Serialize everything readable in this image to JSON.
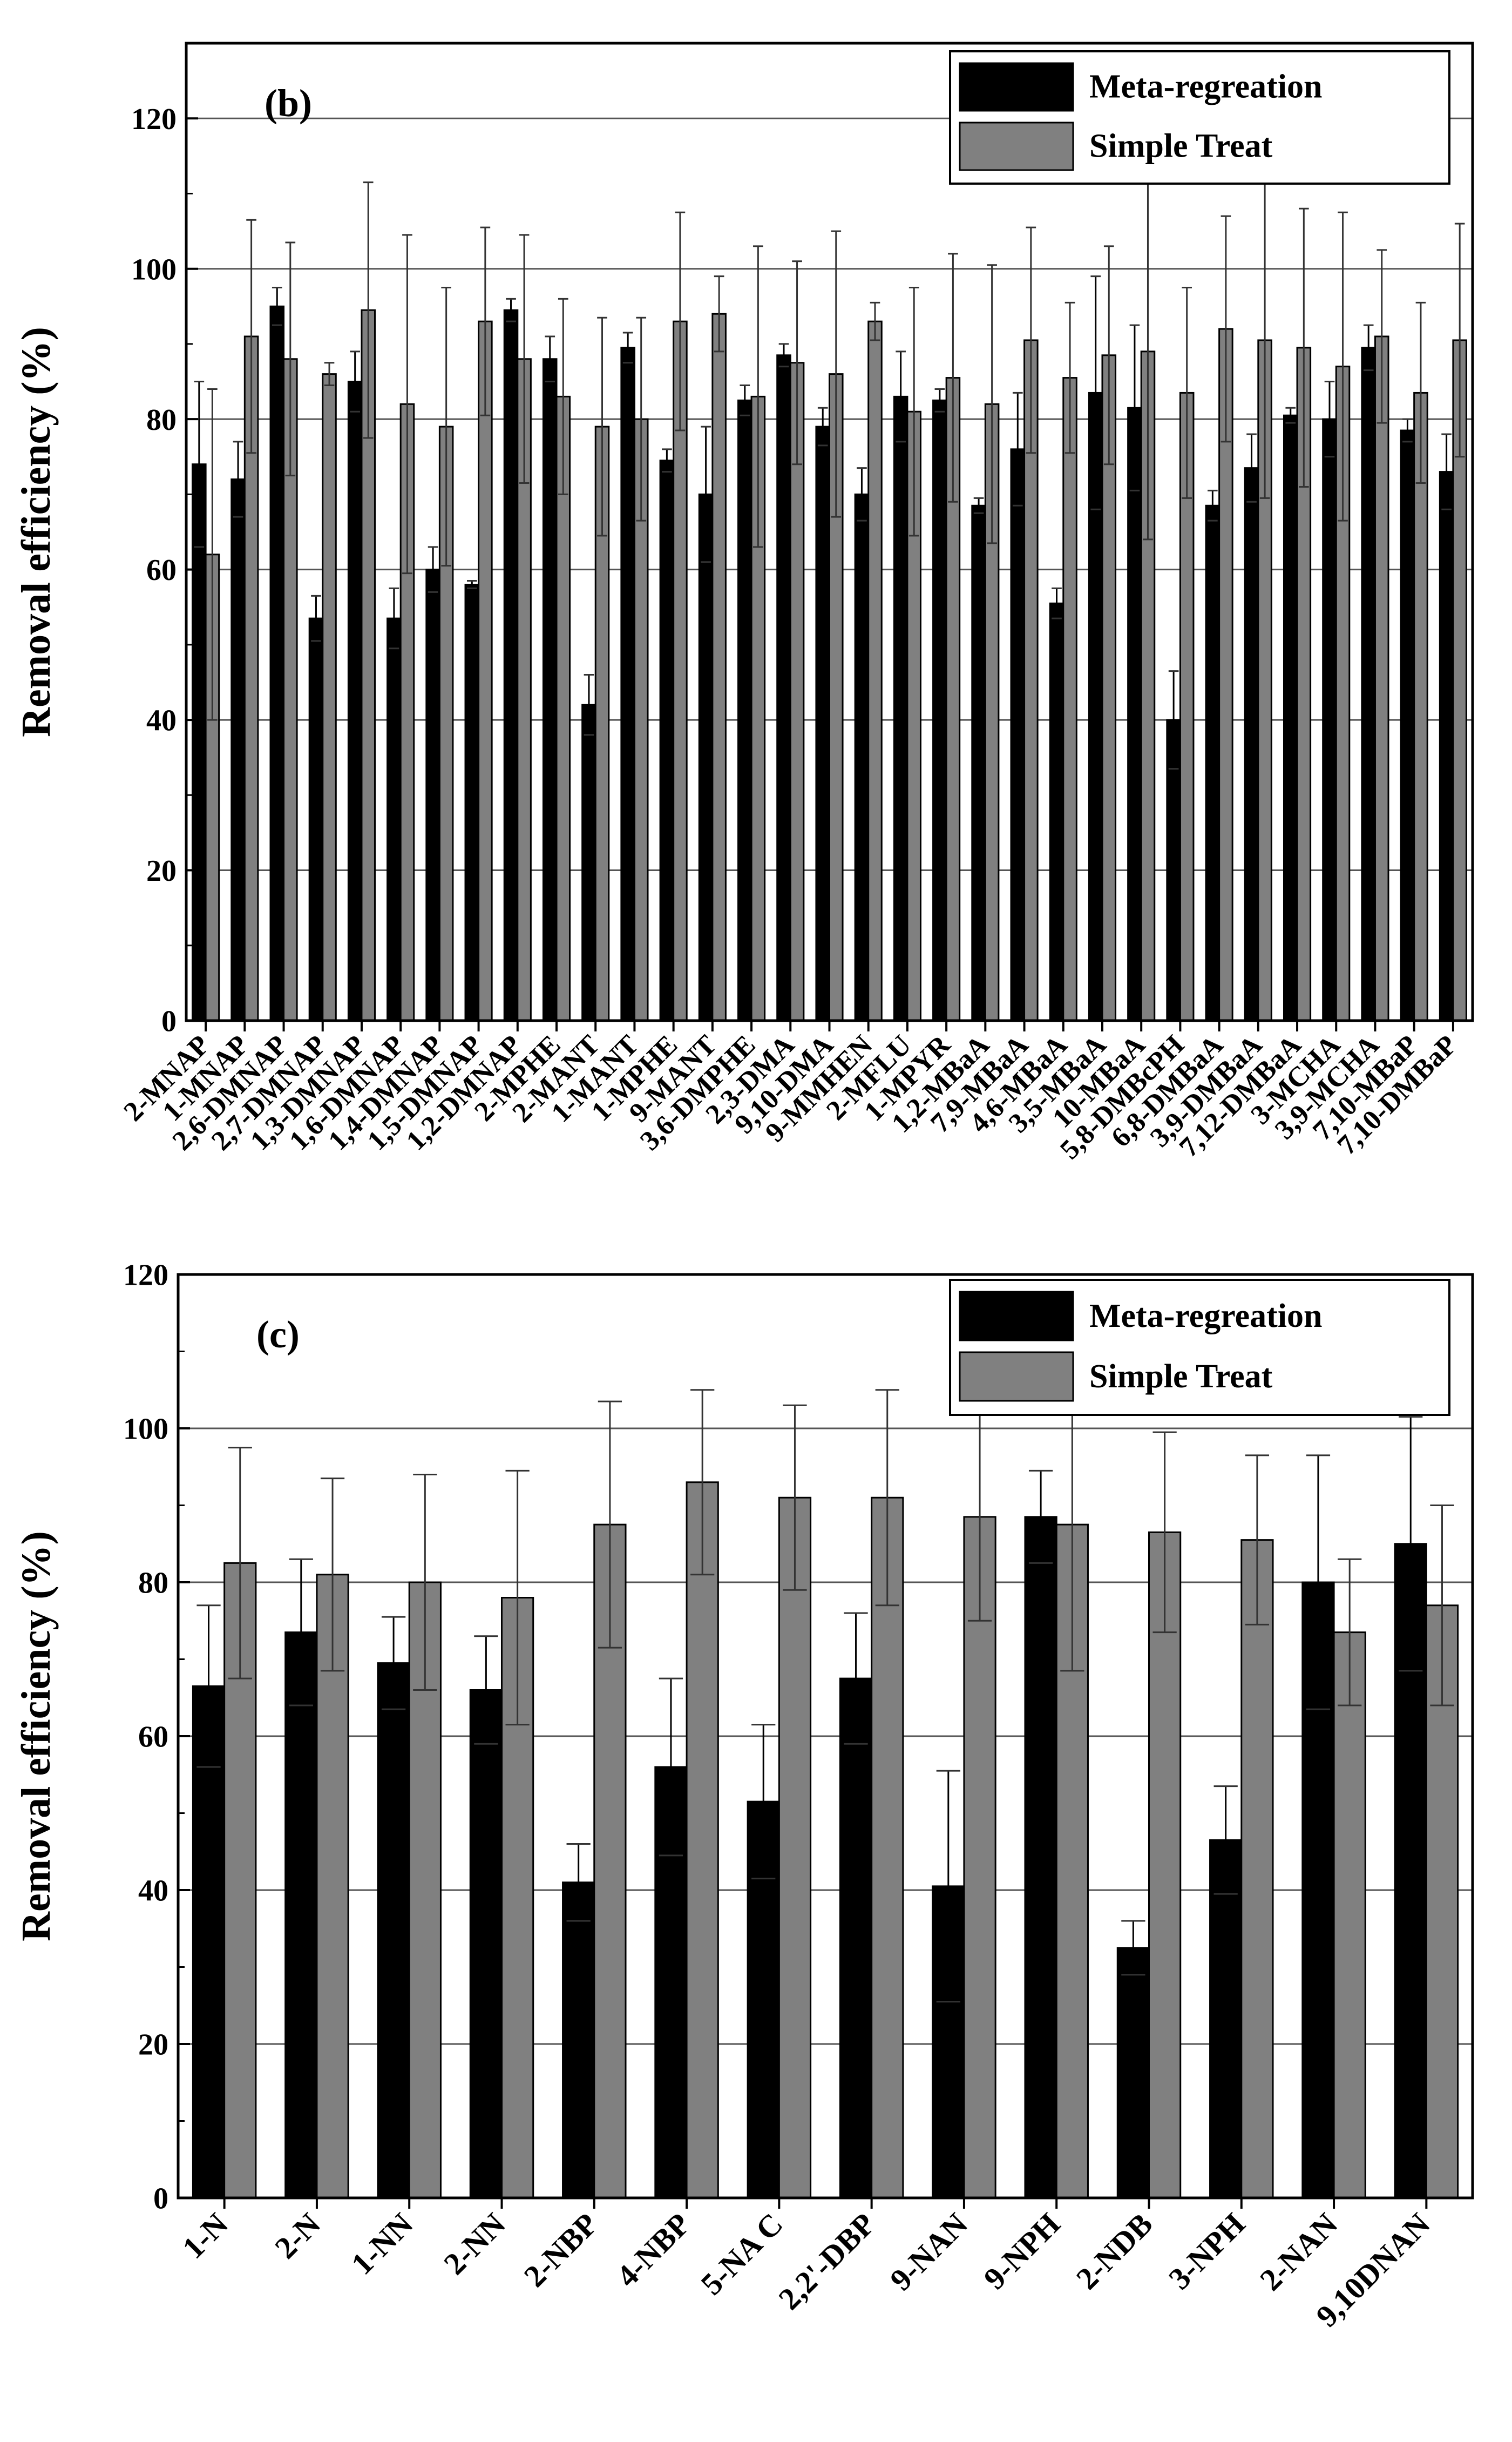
{
  "chart_data": [
    {
      "type": "bar",
      "panel_label": "(b)",
      "ylabel": "Removal efficiency (%)",
      "ylim": [
        0,
        130
      ],
      "yticks": [
        0,
        20,
        40,
        60,
        80,
        100,
        120
      ],
      "grid": true,
      "legend_position": "top-right",
      "categories": [
        "2-MNAP",
        "1-MNAP",
        "2,6-DMNAP",
        "2,7-DMNAP",
        "1,3-DMNAP",
        "1,6-DMNAP",
        "1,4-DMNAP",
        "1,5-DMNAP",
        "1,2-DMNAP",
        "2-MPHE",
        "2-MANT",
        "1-MANT",
        "1-MPHE",
        "9-MANT",
        "3,6-DMPHE",
        "2,3-DMA",
        "9,10-DMA",
        "9-MMHEN",
        "2-MFLU",
        "1-MPYR",
        "1,2-MBaA",
        "7,9-MBaA",
        "4,6-MBaA",
        "3,5-MBaA",
        "10-MBaA",
        "5,8-DMBcPH",
        "6,8-DMBaA",
        "3,9-DMBaA",
        "7,12-DMBaA",
        "3-MCHA",
        "3,9-MCHA",
        "7,10-MBaP",
        "7,10-DMBaP"
      ],
      "series": [
        {
          "name": "Meta-regreation",
          "color": "#000000",
          "values": [
            74,
            72,
            95,
            53.5,
            85,
            53.5,
            60,
            58,
            94.5,
            88,
            42,
            89.5,
            74.5,
            70,
            82.5,
            88.5,
            79,
            70,
            83,
            82.5,
            68.5,
            76,
            55.5,
            83.5,
            81.5,
            40,
            68.5,
            73.5,
            80.5,
            80,
            89.5,
            78.5,
            73
          ],
          "errors": [
            11,
            5,
            2.5,
            3,
            4,
            4,
            3,
            0.5,
            1.5,
            3,
            4,
            2,
            1.5,
            9,
            2,
            1.5,
            2.5,
            3.5,
            6,
            1.5,
            1,
            7.5,
            2,
            15.5,
            11,
            6.5,
            2,
            4.5,
            1,
            5,
            3,
            1.5,
            5
          ]
        },
        {
          "name": "Simple Treat",
          "color": "#808080",
          "values": [
            62,
            91,
            88,
            86,
            94.5,
            82,
            79,
            93,
            88,
            83,
            79,
            80,
            93,
            94,
            83,
            87.5,
            86,
            93,
            81,
            85.5,
            82,
            90.5,
            85.5,
            88.5,
            89,
            83.5,
            92,
            90.5,
            89.5,
            87,
            91,
            83.5,
            90.5
          ],
          "errors": [
            22,
            15.5,
            15.5,
            1.5,
            17,
            22.5,
            18.5,
            12.5,
            16.5,
            13,
            14.5,
            13.5,
            14.5,
            5,
            20,
            13.5,
            19,
            2.5,
            16.5,
            16.5,
            18.5,
            15,
            10,
            14.5,
            25,
            14,
            15,
            21,
            18.5,
            20.5,
            11.5,
            12,
            15.5
          ]
        }
      ],
      "legend": [
        "Meta-regreation",
        "Simple Treat"
      ]
    },
    {
      "type": "bar",
      "panel_label": "(c)",
      "ylabel": "Removal efficiency (%)",
      "ylim": [
        0,
        120
      ],
      "yticks": [
        0,
        20,
        40,
        60,
        80,
        100,
        120
      ],
      "grid": true,
      "legend_position": "top-right",
      "categories": [
        "1-N",
        "2-N",
        "1-NN",
        "2-NN",
        "2-NBP",
        "4-NBP",
        "5-NA C",
        "2,2'-DBP",
        "9-NAN",
        "9-NPH",
        "2-NDB",
        "3-NPH",
        "2-NAN",
        "9,10DNAN"
      ],
      "series": [
        {
          "name": "Meta-regreation",
          "color": "#000000",
          "values": [
            66.5,
            73.5,
            69.5,
            66,
            41,
            56,
            51.5,
            67.5,
            40.5,
            88.5,
            32.5,
            46.5,
            80,
            85
          ],
          "errors": [
            10.5,
            9.5,
            6,
            7,
            5,
            11.5,
            10,
            8.5,
            15,
            6,
            3.5,
            7,
            16.5,
            16.5
          ]
        },
        {
          "name": "Simple Treat",
          "color": "#808080",
          "values": [
            82.5,
            81,
            80,
            78,
            87.5,
            93,
            91,
            91,
            88.5,
            87.5,
            86.5,
            85.5,
            73.5,
            77
          ],
          "errors": [
            15,
            12.5,
            14,
            16.5,
            16,
            12,
            12,
            14,
            13.5,
            19,
            13,
            11,
            9.5,
            13
          ]
        }
      ],
      "legend": [
        "Meta-regreation",
        "Simple Treat"
      ]
    }
  ]
}
